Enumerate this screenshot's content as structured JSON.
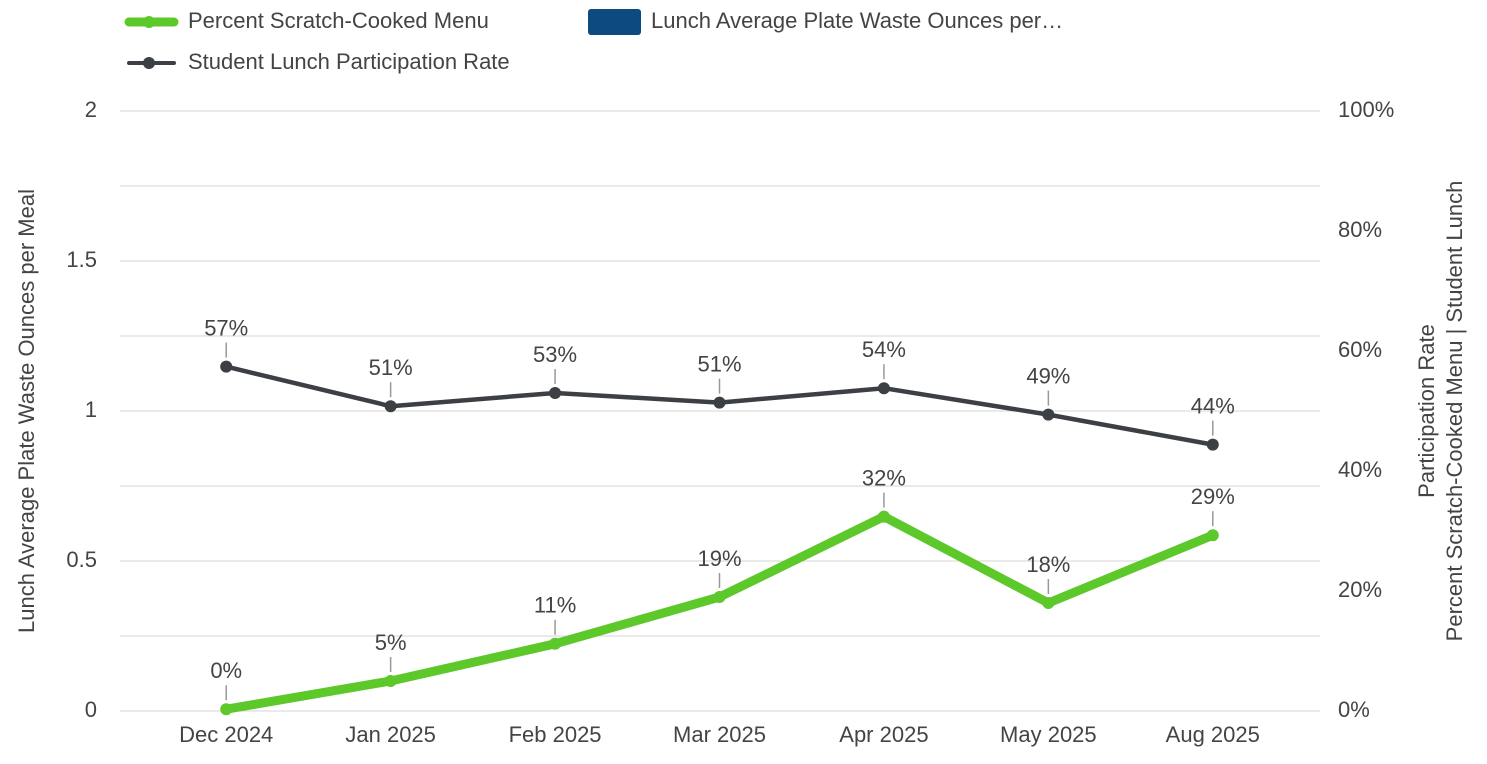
{
  "chart_data": {
    "type": "line",
    "categories": [
      "Dec 2024",
      "Jan 2025",
      "Feb 2025",
      "Mar 2025",
      "Apr 2025",
      "May 2025",
      "Aug 2025"
    ],
    "series": [
      {
        "name": "Percent Scratch-Cooked Menu",
        "color": "#5cc82a",
        "axis": "y2",
        "values": [
          0.3,
          5,
          11.2,
          19,
          32.4,
          18,
          29.3
        ],
        "value_labels": [
          "0%",
          "5%",
          "11%",
          "19%",
          "32%",
          "18%",
          "29%"
        ]
      },
      {
        "name": "Lunch Average Plate Waste Ounces per…",
        "color": "#0d4a80",
        "axis": "y",
        "values": [
          null,
          null,
          null,
          null,
          null,
          null,
          null
        ]
      },
      {
        "name": "Student Lunch Participation Rate",
        "color": "#3c3f44",
        "axis": "y2",
        "values": [
          57.4,
          50.8,
          53,
          51.4,
          53.8,
          49.4,
          44.4
        ],
        "value_labels": [
          "57%",
          "51%",
          "53%",
          "51%",
          "54%",
          "49%",
          "44%"
        ]
      }
    ],
    "y_label": "Lunch Average Plate Waste Ounces per Meal",
    "y2_label": [
      "Percent Scratch-Cooked Menu | Student Lunch",
      "Participation Rate"
    ],
    "ylim": [
      0,
      2
    ],
    "yticks": [
      0,
      {
        "value": 0.25,
        "label": null
      },
      {
        "value": 0.5,
        "label": "0.5"
      },
      {
        "value": 0.75,
        "label": null
      },
      1,
      {
        "value": 1.25,
        "label": null
      },
      {
        "value": 1.5,
        "label": "1.5"
      },
      {
        "value": 1.75,
        "label": null
      },
      2
    ],
    "y2lim": [
      0,
      100
    ],
    "y2ticks": [
      {
        "value": 0,
        "label": "0%"
      },
      {
        "value": 20,
        "label": "20%"
      },
      {
        "value": 40,
        "label": "40%"
      },
      {
        "value": 60,
        "label": "60%"
      },
      {
        "value": 80,
        "label": "80%"
      },
      {
        "value": 100,
        "label": "100%"
      }
    ],
    "grid": true,
    "legend": "top"
  }
}
